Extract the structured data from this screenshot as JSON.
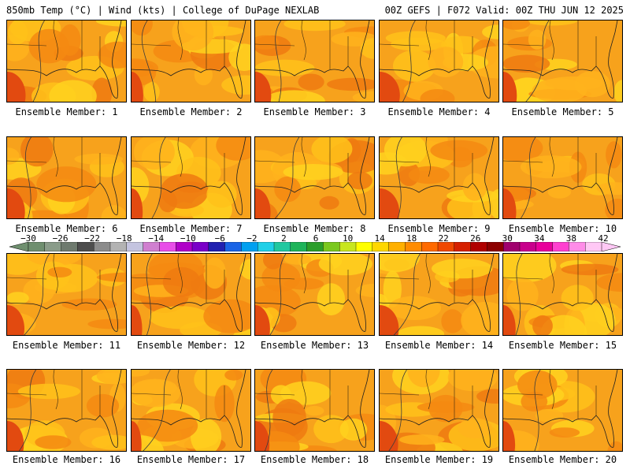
{
  "header": {
    "left": "850mb Temp (°C) | Wind (kts) | College of DuPage NEXLAB",
    "right": "00Z GEFS | F072 Valid: 00Z THU JUN 12 2025"
  },
  "panels": [
    {
      "label": "Ensemble Member: 1"
    },
    {
      "label": "Ensemble Member: 2"
    },
    {
      "label": "Ensemble Member: 3"
    },
    {
      "label": "Ensemble Member: 4"
    },
    {
      "label": "Ensemble Member: 5"
    },
    {
      "label": "Ensemble Member: 6"
    },
    {
      "label": "Ensemble Member: 7"
    },
    {
      "label": "Ensemble Member: 8"
    },
    {
      "label": "Ensemble Member: 9"
    },
    {
      "label": "Ensemble Member: 10"
    },
    {
      "label": "Ensemble Member: 11"
    },
    {
      "label": "Ensemble Member: 12"
    },
    {
      "label": "Ensemble Member: 13"
    },
    {
      "label": "Ensemble Member: 14"
    },
    {
      "label": "Ensemble Member: 15"
    },
    {
      "label": "Ensemble Member: 16"
    },
    {
      "label": "Ensemble Member: 17"
    },
    {
      "label": "Ensemble Member: 18"
    },
    {
      "label": "Ensemble Member: 19"
    },
    {
      "label": "Ensemble Member: 20"
    }
  ],
  "colorbar": {
    "labels": [
      "−30",
      "−26",
      "−22",
      "−18",
      "−14",
      "−10",
      "−6",
      "−2",
      "2",
      "6",
      "10",
      "14",
      "18",
      "22",
      "26",
      "30",
      "34",
      "38",
      "42"
    ],
    "colors": [
      "#6f8f6f",
      "#8a9c8a",
      "#6e7a6e",
      "#4d4d4d",
      "#8c8c8c",
      "#b3b3b3",
      "#c4c4e0",
      "#d07fd0",
      "#e84de8",
      "#b000c8",
      "#7a00c8",
      "#2020b0",
      "#1a64e6",
      "#00a0f0",
      "#20d0e8",
      "#20c8a0",
      "#1eb45a",
      "#2a9e2a",
      "#7ac81e",
      "#c8e61e",
      "#ffff00",
      "#ffd700",
      "#ffb000",
      "#ff8c00",
      "#ff6a00",
      "#f04800",
      "#d62000",
      "#b00000",
      "#8c0000",
      "#a0006e",
      "#c8008c",
      "#e8009c",
      "#ff40d0",
      "#ff8ce8",
      "#ffc8f5"
    ]
  }
}
